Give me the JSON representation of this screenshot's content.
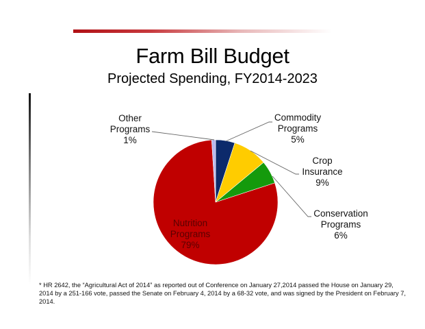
{
  "slide": {
    "title": "Farm Bill Budget",
    "subtitle": "Projected Spending, FY2014-2023",
    "footnote": "* HR 2642, the “Agricultural Act of 2014” as reported out of Conference on January 27,2014 passed the House on January 29, 2014 by a 251-166 vote, passed the Senate on February 4, 2014 by a 68-32 vote, and was signed by the President on February 7, 2014.",
    "accent_color": "#b01015"
  },
  "labels": {
    "other": {
      "line1": "Other",
      "line2": "Programs",
      "pct": "1%"
    },
    "commodity": {
      "line1": "Commodity",
      "line2": "Programs",
      "pct": "5%"
    },
    "crop": {
      "line1": "Crop",
      "line2": "Insurance",
      "pct": "9%"
    },
    "conservation": {
      "line1": "Conservation",
      "line2": "Programs",
      "pct": "6%"
    },
    "nutrition": {
      "line1": "Nutrition",
      "line2": "Programs",
      "pct": "79%"
    }
  },
  "chart_data": {
    "type": "pie",
    "title": "Farm Bill Budget",
    "subtitle": "Projected Spending, FY2014-2023",
    "categories": [
      "Commodity Programs",
      "Crop Insurance",
      "Conservation Programs",
      "Nutrition Programs",
      "Other Programs"
    ],
    "values": [
      5,
      9,
      6,
      79,
      1
    ],
    "unit": "%",
    "colors": [
      "#0c2a6b",
      "#ffcc00",
      "#149a0c",
      "#c00000",
      "#b8b8ee"
    ],
    "start_angle": "12 o'clock",
    "direction": "clockwise",
    "legend": "none (data labels with leader lines)"
  }
}
